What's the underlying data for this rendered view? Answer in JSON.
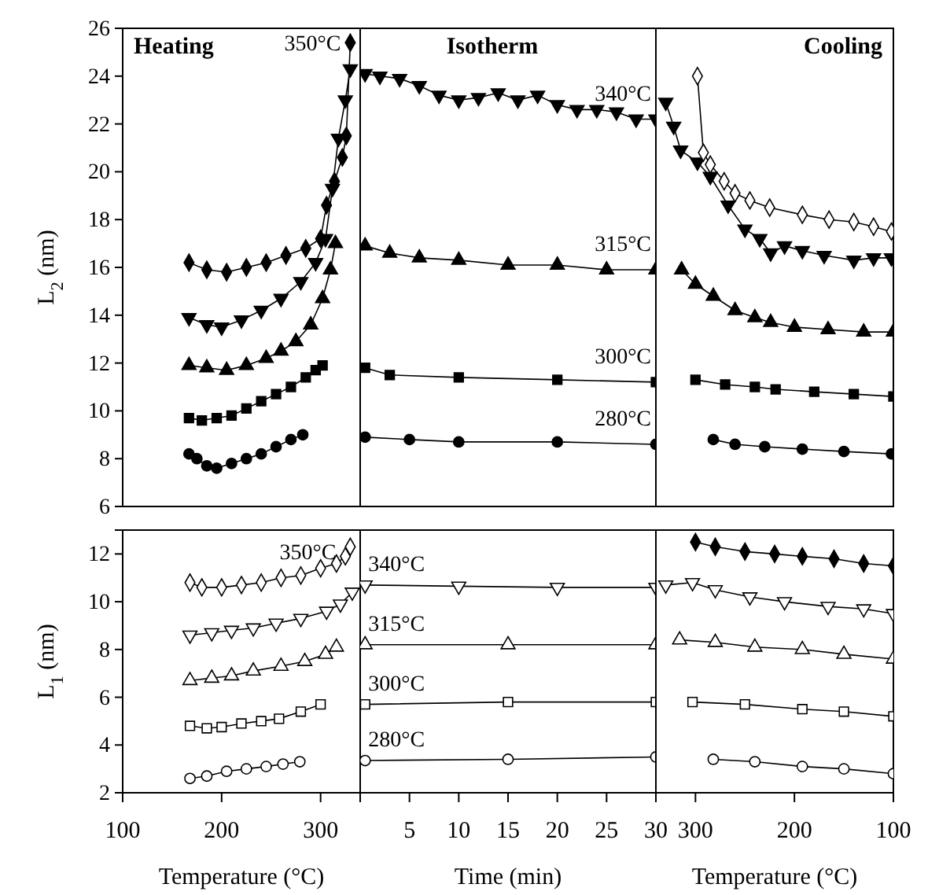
{
  "chart_data": [
    {
      "type": "line",
      "title": "Heating",
      "ylabel": "L$_{2}$ (nm)",
      "xlim": [
        100,
        340
      ],
      "ylim": [
        6,
        26
      ],
      "yticks": [
        6,
        8,
        10,
        12,
        14,
        16,
        18,
        20,
        22,
        24,
        26
      ],
      "tick_labels": "y",
      "series": [
        {
          "color": "#000000",
          "marker": "circle",
          "x": [
            167,
            175,
            185,
            195,
            210,
            225,
            240,
            255,
            270,
            282
          ],
          "values": [
            8.2,
            8.0,
            7.7,
            7.6,
            7.8,
            8.0,
            8.2,
            8.5,
            8.8,
            9.0
          ]
        },
        {
          "color": "#000000",
          "marker": "square",
          "x": [
            167,
            180,
            195,
            210,
            225,
            240,
            255,
            270,
            285,
            295,
            302
          ],
          "values": [
            9.7,
            9.6,
            9.7,
            9.8,
            10.1,
            10.4,
            10.7,
            11.0,
            11.4,
            11.7,
            11.9
          ]
        },
        {
          "color": "#000000",
          "marker": "triangle",
          "x": [
            167,
            185,
            205,
            225,
            245,
            260,
            275,
            290,
            302,
            310,
            315
          ],
          "values": [
            11.9,
            11.8,
            11.7,
            11.9,
            12.2,
            12.5,
            12.9,
            13.6,
            14.7,
            15.9,
            17.0
          ]
        },
        {
          "color": "#000000",
          "marker": "triangle-down",
          "x": [
            167,
            185,
            200,
            220,
            240,
            260,
            280,
            295,
            305,
            312,
            318,
            325,
            330
          ],
          "values": [
            13.9,
            13.6,
            13.5,
            13.8,
            14.2,
            14.7,
            15.4,
            16.2,
            17.2,
            19.3,
            21.4,
            23.0,
            24.3
          ]
        },
        {
          "name": "350°C",
          "color": "#000000",
          "marker": "diamond",
          "x": [
            167,
            185,
            205,
            225,
            245,
            265,
            285,
            300,
            306,
            314,
            322,
            326,
            330
          ],
          "values": [
            16.2,
            15.9,
            15.8,
            16.0,
            16.2,
            16.5,
            16.8,
            17.2,
            18.6,
            19.6,
            20.6,
            21.5,
            25.4
          ]
        }
      ]
    },
    {
      "type": "line",
      "title": "Isotherm",
      "xlim": [
        0,
        30
      ],
      "ylim": [
        6,
        26
      ],
      "tick_labels": false,
      "series": [
        {
          "name": "280°C",
          "color": "#000000",
          "marker": "circle",
          "x": [
            0.5,
            5,
            10,
            20,
            30
          ],
          "values": [
            8.9,
            8.8,
            8.7,
            8.7,
            8.6
          ]
        },
        {
          "name": "300°C",
          "color": "#000000",
          "marker": "square",
          "x": [
            0.5,
            3,
            10,
            20,
            30
          ],
          "values": [
            11.8,
            11.5,
            11.4,
            11.3,
            11.2
          ]
        },
        {
          "name": "315°C",
          "color": "#000000",
          "marker": "triangle",
          "x": [
            0.5,
            3,
            6,
            10,
            15,
            20,
            25,
            30
          ],
          "values": [
            16.9,
            16.6,
            16.4,
            16.3,
            16.1,
            16.1,
            15.9,
            15.9
          ]
        },
        {
          "name": "340°C",
          "color": "#000000",
          "marker": "triangle-down",
          "x": [
            0.5,
            2,
            4,
            6,
            8,
            10,
            12,
            14,
            16,
            18,
            20,
            22,
            24,
            26,
            28,
            30
          ],
          "values": [
            24.1,
            24.0,
            23.9,
            23.6,
            23.2,
            23.0,
            23.1,
            23.3,
            23.0,
            23.2,
            22.8,
            22.6,
            22.6,
            22.5,
            22.2,
            22.2
          ]
        }
      ]
    },
    {
      "type": "line",
      "title": "Cooling",
      "xlim": [
        340,
        100
      ],
      "ylim": [
        6,
        26
      ],
      "tick_labels": false,
      "series": [
        {
          "color": "#000000",
          "marker": "circle",
          "x": [
            282,
            260,
            230,
            192,
            150,
            102
          ],
          "values": [
            8.8,
            8.6,
            8.5,
            8.4,
            8.3,
            8.2
          ]
        },
        {
          "color": "#000000",
          "marker": "square",
          "x": [
            300,
            270,
            240,
            219,
            180,
            140,
            100
          ],
          "values": [
            11.3,
            11.1,
            11.0,
            10.9,
            10.8,
            10.7,
            10.6
          ]
        },
        {
          "color": "#000000",
          "marker": "triangle",
          "x": [
            314,
            300,
            282,
            260,
            240,
            224,
            200,
            166,
            130,
            100
          ],
          "values": [
            15.9,
            15.3,
            14.8,
            14.2,
            13.9,
            13.7,
            13.5,
            13.4,
            13.3,
            13.3
          ]
        },
        {
          "color": "#000000",
          "marker": "triangle-down",
          "x": [
            330,
            322,
            315,
            298,
            285,
            267,
            250,
            235,
            224,
            210,
            192,
            170,
            140,
            120,
            102
          ],
          "values": [
            22.9,
            21.9,
            20.9,
            20.4,
            19.8,
            18.6,
            17.6,
            17.2,
            16.6,
            16.9,
            16.7,
            16.5,
            16.3,
            16.4,
            16.4
          ]
        },
        {
          "color": "#ffffff",
          "marker": "diamond",
          "x": [
            298,
            292,
            285,
            271,
            260,
            245,
            225,
            192,
            165,
            140,
            120,
            102
          ],
          "values": [
            24.0,
            20.8,
            20.3,
            19.6,
            19.1,
            18.8,
            18.5,
            18.2,
            18.0,
            17.9,
            17.7,
            17.5
          ]
        }
      ]
    },
    {
      "type": "line",
      "xlabel": "Temperature (°C)",
      "ylabel": "L$_{1}$ (nm)",
      "xlim": [
        100,
        340
      ],
      "ylim": [
        2,
        13
      ],
      "xticks": [
        100,
        200,
        300
      ],
      "yticks": [
        2,
        4,
        6,
        8,
        10,
        12
      ],
      "series": [
        {
          "color": "#ffffff",
          "marker": "circle",
          "x": [
            168,
            185,
            205,
            225,
            245,
            262,
            279
          ],
          "values": [
            2.6,
            2.7,
            2.9,
            3.0,
            3.1,
            3.2,
            3.3
          ]
        },
        {
          "color": "#ffffff",
          "marker": "square",
          "x": [
            168,
            185,
            200,
            220,
            240,
            258,
            280,
            300
          ],
          "values": [
            4.8,
            4.7,
            4.75,
            4.9,
            5.0,
            5.1,
            5.4,
            5.7
          ]
        },
        {
          "color": "#ffffff",
          "marker": "triangle",
          "x": [
            168,
            190,
            210,
            232,
            260,
            284,
            305,
            316
          ],
          "values": [
            6.7,
            6.8,
            6.9,
            7.1,
            7.3,
            7.5,
            7.8,
            8.1
          ]
        },
        {
          "color": "#ffffff",
          "marker": "triangle-down",
          "x": [
            168,
            190,
            210,
            232,
            255,
            280,
            306,
            320,
            332
          ],
          "values": [
            8.6,
            8.7,
            8.8,
            8.9,
            9.1,
            9.3,
            9.6,
            9.9,
            10.4
          ]
        },
        {
          "name": "350°C",
          "color": "#ffffff",
          "marker": "diamond",
          "x": [
            168,
            180,
            200,
            220,
            240,
            260,
            280,
            300,
            316,
            325,
            330
          ],
          "values": [
            10.8,
            10.6,
            10.6,
            10.7,
            10.8,
            11.0,
            11.1,
            11.4,
            11.6,
            11.9,
            12.3
          ]
        }
      ]
    },
    {
      "type": "line",
      "xlabel": "Time (min)",
      "xlim": [
        0,
        30
      ],
      "ylim": [
        2,
        13
      ],
      "xticks": [
        5,
        10,
        15,
        20,
        25,
        30
      ],
      "tick_labels": "x",
      "series": [
        {
          "name": "280°C",
          "color": "#ffffff",
          "marker": "circle",
          "x": [
            0.5,
            15,
            30
          ],
          "values": [
            3.35,
            3.4,
            3.5
          ]
        },
        {
          "name": "300°C",
          "color": "#ffffff",
          "marker": "square",
          "x": [
            0.5,
            15,
            30
          ],
          "values": [
            5.7,
            5.8,
            5.8
          ]
        },
        {
          "name": "315°C",
          "color": "#ffffff",
          "marker": "triangle",
          "x": [
            0.5,
            15,
            30
          ],
          "values": [
            8.2,
            8.2,
            8.2
          ]
        },
        {
          "name": "340°C",
          "color": "#ffffff",
          "marker": "triangle-down",
          "x": [
            0.5,
            10,
            20,
            30
          ],
          "values": [
            10.7,
            10.65,
            10.6,
            10.6
          ]
        }
      ]
    },
    {
      "type": "line",
      "xlabel": "Temperature (°C)",
      "xlim": [
        340,
        100
      ],
      "ylim": [
        2,
        13
      ],
      "xticks": [
        300,
        200,
        100
      ],
      "tick_labels": "x",
      "series": [
        {
          "color": "#ffffff",
          "marker": "circle",
          "x": [
            282,
            240,
            192,
            150,
            100
          ],
          "values": [
            3.4,
            3.3,
            3.1,
            3.0,
            2.8
          ]
        },
        {
          "color": "#ffffff",
          "marker": "square",
          "x": [
            303,
            250,
            192,
            150,
            100
          ],
          "values": [
            5.8,
            5.7,
            5.5,
            5.4,
            5.2
          ]
        },
        {
          "color": "#ffffff",
          "marker": "triangle",
          "x": [
            316,
            280,
            240,
            192,
            150,
            100
          ],
          "values": [
            8.4,
            8.3,
            8.1,
            8.0,
            7.8,
            7.6
          ]
        },
        {
          "color": "#ffffff",
          "marker": "triangle-down",
          "x": [
            330,
            303,
            280,
            245,
            210,
            166,
            130,
            100
          ],
          "values": [
            10.7,
            10.8,
            10.5,
            10.2,
            10.0,
            9.8,
            9.7,
            9.5
          ]
        },
        {
          "color": "#000000",
          "marker": "diamond",
          "x": [
            300,
            280,
            250,
            220,
            192,
            160,
            130,
            100
          ],
          "values": [
            12.5,
            12.3,
            12.1,
            12.0,
            11.9,
            11.8,
            11.6,
            11.5
          ]
        }
      ]
    }
  ]
}
